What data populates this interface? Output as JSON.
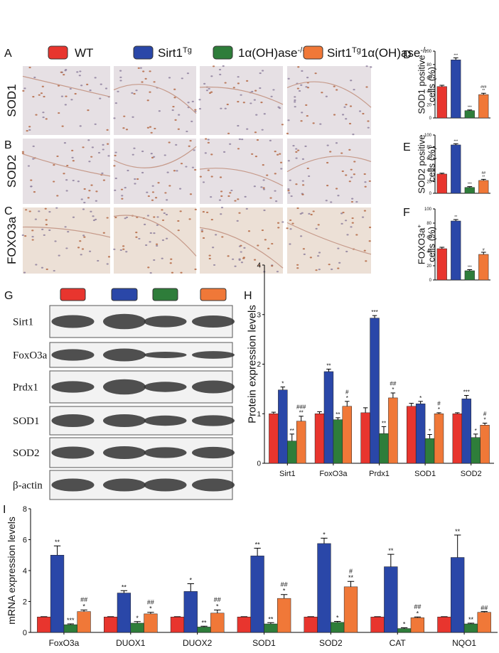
{
  "legend": [
    {
      "color": "#e8352e",
      "runs": [
        {
          "t": "WT"
        }
      ]
    },
    {
      "color": "#2a47a8",
      "runs": [
        {
          "t": "Sirt1"
        },
        {
          "t": "Tg",
          "sup": true
        }
      ]
    },
    {
      "color": "#2e7d3a",
      "runs": [
        {
          "t": "1α(OH)ase"
        },
        {
          "t": "-/-",
          "sup": true
        }
      ]
    },
    {
      "color": "#f07838",
      "runs": [
        {
          "t": "Sirt1"
        },
        {
          "t": "Tg",
          "sup": true
        },
        {
          "t": "1α(OH)ase"
        },
        {
          "t": "-/-",
          "sup": true
        }
      ]
    }
  ],
  "panel_labels": [
    "A",
    "B",
    "C",
    "D",
    "E",
    "F",
    "G",
    "H",
    "I"
  ],
  "row_labels": [
    "SOD1",
    "SOD2",
    "FOXO3a"
  ],
  "blot_labels": [
    "Sirt1",
    "FoxO3a",
    "Prdx1",
    "SOD1",
    "SOD2",
    "β-actin"
  ],
  "chart_data": [
    {
      "type": "bar",
      "ylabel": [
        [
          {
            "t": "SOD1 positive"
          }
        ],
        [
          {
            "t": "cells (%)"
          }
        ]
      ],
      "values": [
        47,
        87,
        11,
        35
      ],
      "errors": [
        2,
        3,
        1,
        2
      ],
      "colors": [
        "#e8352e",
        "#2a47a8",
        "#2e7d3a",
        "#f07838"
      ],
      "annotations": [
        [],
        [
          "***"
        ],
        [
          "***"
        ],
        [
          "###",
          "**"
        ]
      ],
      "ylim": [
        0,
        100
      ],
      "yticks": [
        0,
        20,
        40,
        60,
        80,
        100
      ]
    },
    {
      "type": "bar",
      "ylabel": [
        [
          {
            "t": "SOD2 positive"
          }
        ],
        [
          {
            "t": "cells (%)"
          }
        ]
      ],
      "values": [
        33,
        83,
        10,
        22
      ],
      "errors": [
        1.5,
        2,
        1.5,
        2
      ],
      "colors": [
        "#e8352e",
        "#2a47a8",
        "#2e7d3a",
        "#f07838"
      ],
      "annotations": [
        [],
        [
          "***"
        ],
        [
          "***"
        ],
        [
          "##",
          "**"
        ]
      ],
      "ylim": [
        0,
        100
      ],
      "yticks": [
        0,
        20,
        40,
        60,
        80,
        100
      ]
    },
    {
      "type": "bar",
      "ylabel": [
        [
          {
            "t": "FOXO3a"
          },
          {
            "t": "+",
            "sup": true
          }
        ],
        [
          {
            "t": "cells (%)"
          }
        ]
      ],
      "values": [
        44,
        83,
        13,
        36
      ],
      "errors": [
        2,
        2,
        1.5,
        3
      ],
      "colors": [
        "#e8352e",
        "#2a47a8",
        "#2e7d3a",
        "#f07838"
      ],
      "annotations": [
        [],
        [
          "**"
        ],
        [
          "***"
        ],
        [
          "#"
        ]
      ],
      "ylim": [
        0,
        100
      ],
      "yticks": [
        0,
        20,
        40,
        60,
        80,
        100
      ]
    },
    {
      "type": "grouped-bar",
      "ylabel": [
        [
          {
            "t": "Protein expression levels"
          }
        ]
      ],
      "categories": [
        "Sirt1",
        "FoxO3a",
        "Prdx1",
        "SOD1",
        "SOD2"
      ],
      "series": [
        {
          "color": "#e8352e",
          "values": [
            1,
            1,
            1.02,
            1.15,
            1
          ],
          "errors": [
            0.03,
            0.04,
            0.1,
            0.06,
            0.02
          ],
          "annotations": [
            [],
            [],
            [],
            [],
            []
          ]
        },
        {
          "color": "#2a47a8",
          "values": [
            1.48,
            1.85,
            2.93,
            1.2,
            1.3
          ],
          "errors": [
            0.06,
            0.05,
            0.05,
            0.05,
            0.07
          ],
          "annotations": [
            [
              "*"
            ],
            [
              "**"
            ],
            [
              "***"
            ],
            [
              "*"
            ],
            [
              "***"
            ]
          ]
        },
        {
          "color": "#2e7d3a",
          "values": [
            0.45,
            0.88,
            0.6,
            0.5,
            0.52
          ],
          "errors": [
            0.14,
            0.04,
            0.14,
            0.08,
            0.07
          ],
          "annotations": [
            [
              "**"
            ],
            [
              "**"
            ],
            [
              "**"
            ],
            [
              "*"
            ],
            [
              "*"
            ]
          ]
        },
        {
          "color": "#f07838",
          "values": [
            0.85,
            1.15,
            1.32,
            1,
            0.77
          ],
          "errors": [
            0.1,
            0.1,
            0.1,
            0.02,
            0.04
          ],
          "annotations": [
            [
              "###",
              "**"
            ],
            [
              "#",
              "*"
            ],
            [
              "##",
              "*"
            ],
            [
              "#",
              "*"
            ],
            [
              "#",
              "*"
            ]
          ]
        }
      ],
      "ylim": [
        0,
        4
      ],
      "yticks": [
        0,
        1,
        2,
        3,
        4
      ]
    },
    {
      "type": "grouped-bar",
      "ylabel": [
        [
          {
            "t": "mRNA expression levels"
          }
        ]
      ],
      "categories": [
        "FoxO3a",
        "DUOX1",
        "DUOX2",
        "SOD1",
        "SOD2",
        "CAT",
        "NQO1"
      ],
      "series": [
        {
          "color": "#e8352e",
          "values": [
            1,
            1,
            1,
            1,
            1,
            1,
            1
          ],
          "errors": [
            0.02,
            0.02,
            0.02,
            0.02,
            0.02,
            0.02,
            0.02
          ],
          "annotations": [
            [],
            [],
            [],
            [],
            [],
            [],
            []
          ]
        },
        {
          "color": "#2a47a8",
          "values": [
            5,
            2.55,
            2.65,
            4.95,
            5.75,
            4.25,
            4.85
          ],
          "errors": [
            0.6,
            0.15,
            0.5,
            0.5,
            0.35,
            0.8,
            1.45
          ],
          "annotations": [
            [
              "**"
            ],
            [
              "**"
            ],
            [
              "*"
            ],
            [
              "**"
            ],
            [
              "*"
            ],
            [
              "**"
            ],
            [
              "**"
            ]
          ]
        },
        {
          "color": "#2e7d3a",
          "values": [
            0.5,
            0.6,
            0.35,
            0.55,
            0.65,
            0.25,
            0.55
          ],
          "errors": [
            0.05,
            0.1,
            0.05,
            0.08,
            0.06,
            0.05,
            0.05
          ],
          "annotations": [
            [
              "***"
            ],
            [
              "*"
            ],
            [
              "**"
            ],
            [
              "**"
            ],
            [
              "*"
            ],
            [
              "*"
            ],
            [
              "**"
            ]
          ]
        },
        {
          "color": "#f07838",
          "values": [
            1.35,
            1.2,
            1.25,
            2.2,
            2.95,
            0.95,
            1.3
          ],
          "errors": [
            0.1,
            0.1,
            0.2,
            0.25,
            0.35,
            0.05,
            0.05
          ],
          "annotations": [
            [
              "##",
              "*"
            ],
            [
              "##",
              "*"
            ],
            [
              "##",
              "*"
            ],
            [
              "##",
              "*"
            ],
            [
              "#",
              "**"
            ],
            [
              "##",
              "*"
            ],
            [
              "##"
            ]
          ]
        }
      ],
      "ylim": [
        0,
        8
      ],
      "yticks": [
        0,
        2,
        4,
        6,
        8
      ]
    }
  ]
}
